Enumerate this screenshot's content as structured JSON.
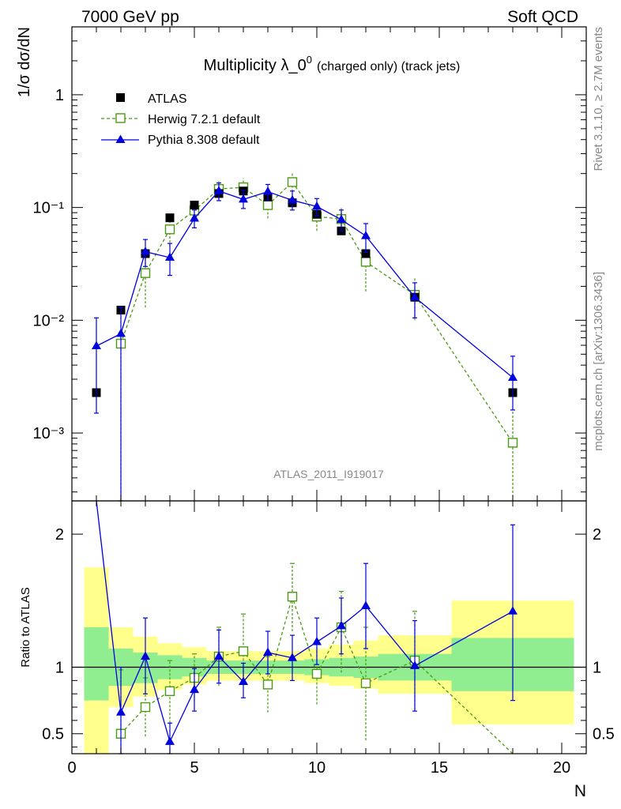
{
  "header": {
    "energy_label": "7000 GeV pp",
    "process_label": "Soft QCD"
  },
  "side_labels": {
    "rivet": "Rivet 3.1.10, ≥ 2.7M events",
    "mcplots": "mcplots.cern.ch [arXiv:1306.3436]"
  },
  "chart_data": [
    {
      "type": "scatter",
      "panel": "main",
      "title_main": "Multiplicity λ_0",
      "title_sup": "0",
      "title_suffix": "(charged only) (track jets)",
      "ylabel": "1/σ dσ/dN",
      "yscale": "log",
      "ylim": [
        0.00025,
        4
      ],
      "xlim": [
        0,
        21
      ],
      "analysis_label": "ATLAS_2011_I919017",
      "y_tick_labels": [
        "1",
        "10⁻¹",
        "10⁻²",
        "10⁻³"
      ],
      "legend_position": "top-left",
      "series": [
        {
          "name": "ATLAS",
          "color": "#000000",
          "marker": "filled-square",
          "x": [
            1,
            2,
            3,
            4,
            5,
            6,
            7,
            8,
            9,
            10,
            11,
            12,
            14,
            18
          ],
          "y": [
            0.00228,
            0.0123,
            0.039,
            0.081,
            0.105,
            0.133,
            0.14,
            0.124,
            0.11,
            0.087,
            0.062,
            0.039,
            0.016,
            0.00228
          ]
        },
        {
          "name": "Herwig 7.2.1 default",
          "color": "#4a9a13",
          "marker": "open-square",
          "line": "dashed",
          "x": [
            2,
            3,
            4,
            5,
            6,
            7,
            8,
            9,
            10,
            11,
            12,
            14,
            18
          ],
          "y": [
            0.0062,
            0.0262,
            0.064,
            0.094,
            0.146,
            0.151,
            0.105,
            0.168,
            0.083,
            0.079,
            0.033,
            0.0168,
            0.00082
          ],
          "y_lo": [
            0.00025,
            0.013,
            0.045,
            0.075,
            0.118,
            0.12,
            0.08,
            0.138,
            0.062,
            0.058,
            0.018,
            0.01,
            0.00025
          ],
          "y_hi": [
            0.0105,
            0.04,
            0.085,
            0.115,
            0.175,
            0.182,
            0.13,
            0.2,
            0.105,
            0.1,
            0.048,
            0.024,
            0.00165
          ]
        },
        {
          "name": "Pythia 8.308 default",
          "color": "#0000dd",
          "marker": "filled-triangle",
          "line": "solid",
          "x": [
            1,
            2,
            3,
            4,
            5,
            6,
            7,
            8,
            9,
            10,
            11,
            12,
            14,
            18
          ],
          "y": [
            0.0059,
            0.0076,
            0.0405,
            0.036,
            0.08,
            0.14,
            0.118,
            0.138,
            0.116,
            0.102,
            0.078,
            0.056,
            0.016,
            0.0031
          ],
          "y_lo": [
            0.0015,
            0.00025,
            0.03,
            0.025,
            0.066,
            0.115,
            0.098,
            0.115,
            0.095,
            0.085,
            0.062,
            0.04,
            0.0105,
            0.0016
          ],
          "y_hi": [
            0.0105,
            0.013,
            0.052,
            0.048,
            0.095,
            0.165,
            0.142,
            0.16,
            0.14,
            0.12,
            0.095,
            0.072,
            0.0215,
            0.0048
          ]
        }
      ]
    },
    {
      "type": "scatter",
      "panel": "ratio",
      "ylabel": "Ratio to ATLAS",
      "xlabel": "N",
      "ylim": [
        0.35,
        2.25
      ],
      "xlim": [
        0,
        21
      ],
      "x_ticks": [
        0,
        5,
        10,
        15,
        20
      ],
      "y_ticks": [
        0.5,
        1,
        2
      ],
      "reference_line": 1,
      "bands": {
        "bin_edges": [
          0.5,
          1.5,
          2.5,
          3.5,
          4.5,
          5.5,
          6.5,
          7.5,
          8.5,
          9.5,
          10.5,
          11.5,
          12.5,
          15.5,
          20.5
        ],
        "stat_color": "#90ee90",
        "total_color": "#ffff8c",
        "stat_lo": [
          0.75,
          0.86,
          0.88,
          0.91,
          0.93,
          0.95,
          0.95,
          0.95,
          0.95,
          0.94,
          0.93,
          0.92,
          0.9,
          0.82
        ],
        "stat_hi": [
          1.3,
          1.14,
          1.11,
          1.09,
          1.07,
          1.05,
          1.05,
          1.05,
          1.05,
          1.06,
          1.07,
          1.08,
          1.1,
          1.22
        ],
        "total_lo": [
          0.35,
          0.7,
          0.78,
          0.83,
          0.87,
          0.9,
          0.9,
          0.9,
          0.9,
          0.88,
          0.86,
          0.84,
          0.8,
          0.57
        ],
        "total_hi": [
          1.75,
          1.3,
          1.23,
          1.18,
          1.15,
          1.12,
          1.12,
          1.12,
          1.12,
          1.14,
          1.17,
          1.2,
          1.24,
          1.5
        ]
      },
      "series": [
        {
          "name": "Herwig 7.2.1 default",
          "color": "#4a9a13",
          "x": [
            2,
            3,
            4,
            5,
            6,
            7,
            8,
            9,
            10,
            11,
            12,
            14,
            18
          ],
          "y": [
            0.5,
            0.7,
            0.82,
            0.92,
            1.08,
            1.12,
            0.87,
            1.53,
            0.95,
            1.3,
            0.88,
            1.05,
            0.33
          ],
          "y_lo": [
            0.3,
            0.48,
            0.58,
            0.74,
            0.86,
            0.87,
            0.66,
            1.27,
            0.72,
            0.96,
            0.45,
            0.68,
            0.3
          ],
          "y_hi": [
            0.98,
            0.92,
            1.05,
            1.1,
            1.3,
            1.4,
            1.08,
            1.78,
            1.18,
            1.57,
            1.3,
            1.42,
            0.3
          ]
        },
        {
          "name": "Pythia 8.308 default",
          "color": "#0000dd",
          "x": [
            1,
            2,
            3,
            4,
            5,
            6,
            7,
            8,
            9,
            10,
            11,
            12,
            14,
            18
          ],
          "y": [
            2.25,
            0.66,
            1.08,
            0.44,
            0.83,
            1.08,
            0.89,
            1.11,
            1.07,
            1.19,
            1.31,
            1.46,
            1.01,
            1.42
          ],
          "y_lo": [
            2.25,
            0.3,
            0.8,
            0.3,
            0.67,
            0.88,
            0.77,
            0.95,
            0.9,
            1.02,
            1.1,
            1.14,
            0.67,
            0.75
          ],
          "y_hi": [
            2.25,
            1.0,
            1.37,
            0.58,
            0.99,
            1.28,
            1.03,
            1.27,
            1.24,
            1.37,
            1.52,
            1.78,
            1.35,
            2.07
          ]
        }
      ]
    }
  ]
}
